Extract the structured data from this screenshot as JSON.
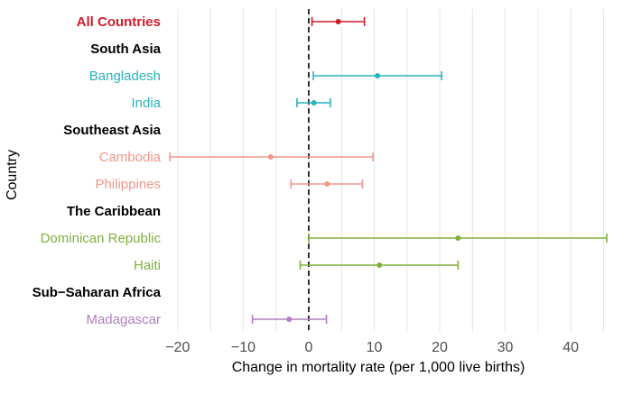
{
  "chart_data": {
    "type": "forest",
    "xlabel": "Change in mortality rate (per 1,000 live births)",
    "ylabel": "Country",
    "xlim": [
      -21.5,
      45.5
    ],
    "xticks": [
      -20,
      -10,
      0,
      10,
      20,
      30,
      40
    ],
    "xtick_labels": [
      "−20",
      "−10",
      "0",
      "10",
      "20",
      "30",
      "40"
    ],
    "reference_line": 0,
    "grid": "vertical",
    "rows": [
      {
        "label": "All Countries",
        "kind": "group",
        "estimate": 4.5,
        "lower": 0.5,
        "upper": 8.5,
        "color": "#d01c2a"
      },
      {
        "label": "South Asia",
        "kind": "header",
        "color": "#000000"
      },
      {
        "label": "Bangladesh",
        "kind": "item",
        "estimate": 10.5,
        "lower": 0.7,
        "upper": 20.3,
        "color": "#2ab3be"
      },
      {
        "label": "India",
        "kind": "item",
        "estimate": 0.8,
        "lower": -1.8,
        "upper": 3.3,
        "color": "#2ab3be"
      },
      {
        "label": "Southeast Asia",
        "kind": "header",
        "color": "#000000"
      },
      {
        "label": "Cambodia",
        "kind": "item",
        "estimate": -5.8,
        "lower": -21.2,
        "upper": 9.8,
        "color": "#f0968a"
      },
      {
        "label": "Philippines",
        "kind": "item",
        "estimate": 2.8,
        "lower": -2.7,
        "upper": 8.2,
        "color": "#f0968a"
      },
      {
        "label": "The Caribbean",
        "kind": "header",
        "color": "#000000"
      },
      {
        "label": "Dominican Republic",
        "kind": "item",
        "estimate": 22.8,
        "lower": 0.0,
        "upper": 45.5,
        "color": "#7fb03a"
      },
      {
        "label": "Haiti",
        "kind": "item",
        "estimate": 10.8,
        "lower": -1.3,
        "upper": 22.8,
        "color": "#7fb03a"
      },
      {
        "label": "Sub−Saharan Africa",
        "kind": "header",
        "color": "#000000"
      },
      {
        "label": "Madagascar",
        "kind": "item",
        "estimate": -3.0,
        "lower": -8.6,
        "upper": 2.7,
        "color": "#b07ec2"
      }
    ]
  }
}
